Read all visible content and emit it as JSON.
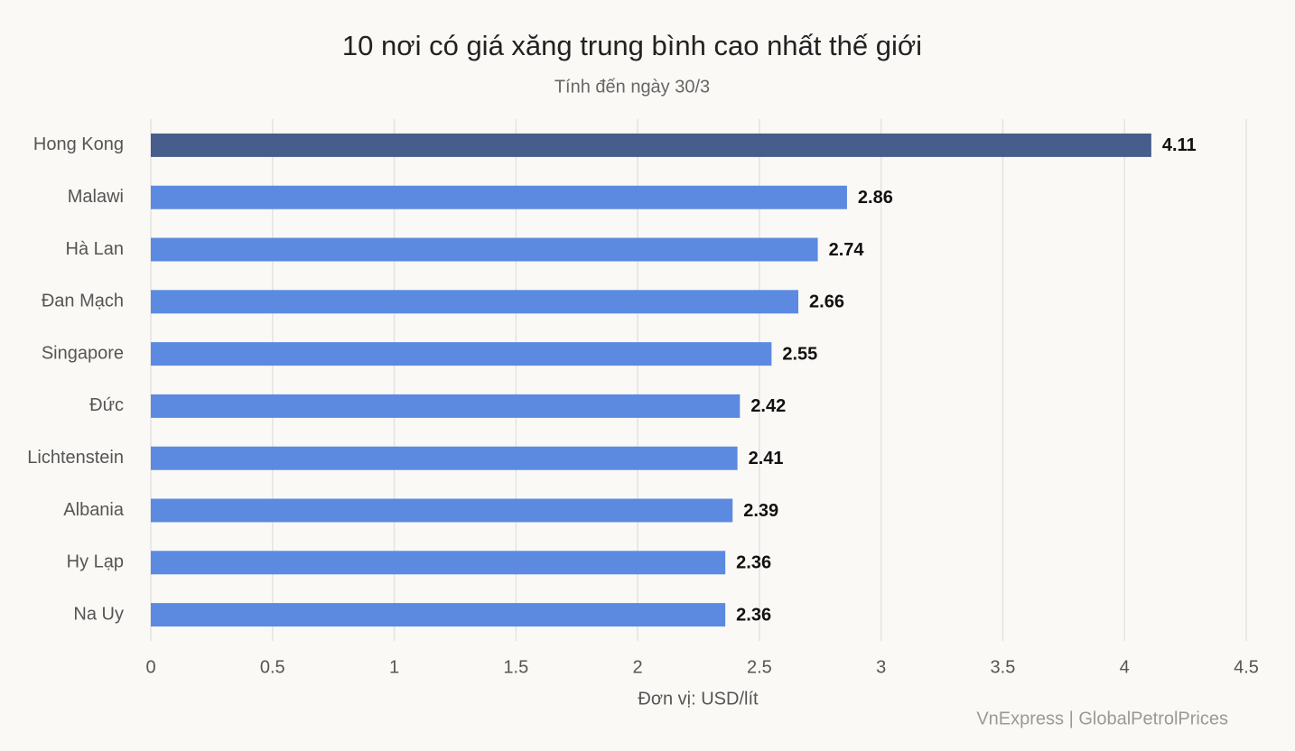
{
  "chart_data": {
    "type": "hbar",
    "title": "10 nơi có giá xăng trung bình cao nhất thế giới",
    "subtitle": "Tính đến ngày 30/3",
    "x_label": "Đơn vị: USD/lít",
    "source": "VnExpress | GlobalPetrolPrices",
    "categories": [
      "Hong Kong",
      "Malawi",
      "Hà Lan",
      "Đan Mạch",
      "Singapore",
      "Đức",
      "Lichtenstein",
      "Albania",
      "Hy Lạp",
      "Na Uy"
    ],
    "values": [
      4.11,
      2.86,
      2.74,
      2.66,
      2.55,
      2.42,
      2.41,
      2.39,
      2.36,
      2.36
    ],
    "colors": [
      "#475d8b",
      "#5b8ae0",
      "#5b8ae0",
      "#5b8ae0",
      "#5b8ae0",
      "#5b8ae0",
      "#5b8ae0",
      "#5b8ae0",
      "#5b8ae0",
      "#5b8ae0"
    ],
    "xlim": [
      0,
      4.5
    ],
    "xticks": [
      0,
      0.5,
      1,
      1.5,
      2,
      2.5,
      3,
      3.5,
      4,
      4.5
    ],
    "grid": true
  }
}
